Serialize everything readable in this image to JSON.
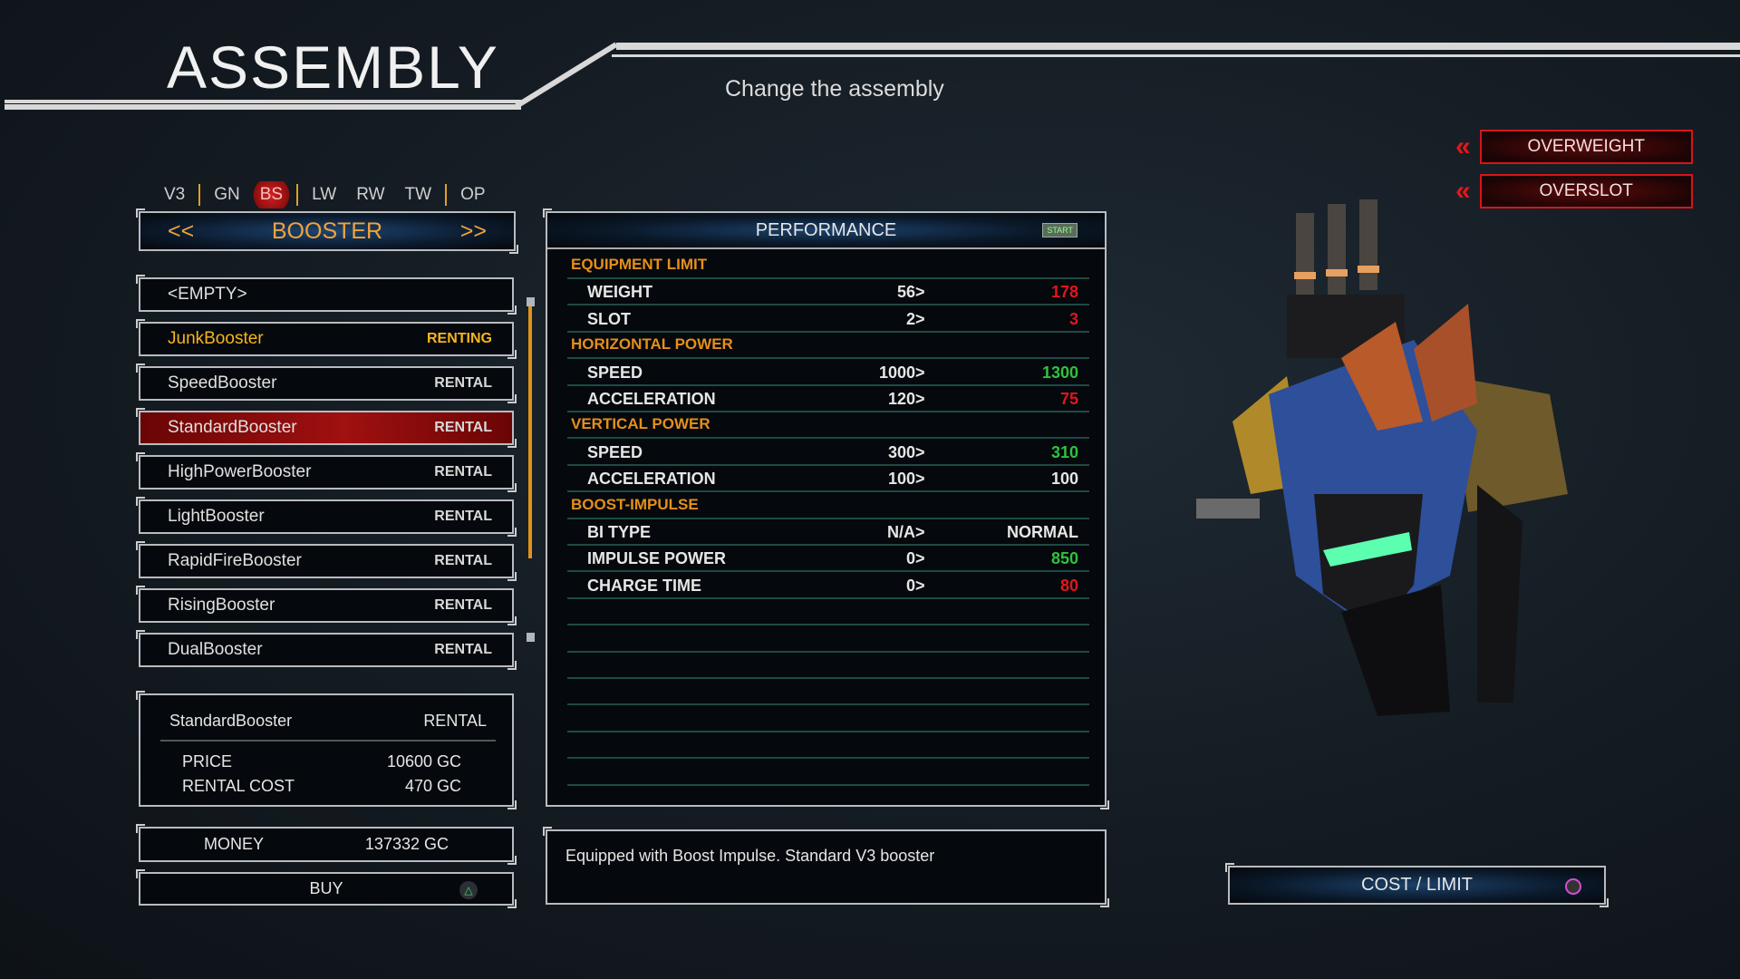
{
  "header": {
    "title": "ASSEMBLY",
    "subtitle": "Change the assembly"
  },
  "tabs": [
    {
      "label": "V3"
    },
    {
      "label": "GN"
    },
    {
      "label": "BS",
      "active": true
    },
    {
      "label": "LW"
    },
    {
      "label": "RW"
    },
    {
      "label": "TW"
    },
    {
      "label": "OP"
    }
  ],
  "category": {
    "prev": "<<",
    "label": "BOOSTER",
    "next": ">>"
  },
  "parts": [
    {
      "name": "<EMPTY>",
      "status": ""
    },
    {
      "name": "JunkBooster",
      "status": "RENTING"
    },
    {
      "name": "SpeedBooster",
      "status": "RENTAL"
    },
    {
      "name": "StandardBooster",
      "status": "RENTAL",
      "selected": true
    },
    {
      "name": "HighPowerBooster",
      "status": "RENTAL"
    },
    {
      "name": "LightBooster",
      "status": "RENTAL"
    },
    {
      "name": "RapidFireBooster",
      "status": "RENTAL"
    },
    {
      "name": "RisingBooster",
      "status": "RENTAL"
    },
    {
      "name": "DualBooster",
      "status": "RENTAL"
    }
  ],
  "info": {
    "name": "StandardBooster",
    "status": "RENTAL",
    "price_label": "PRICE",
    "price": "10600 GC",
    "rental_label": "RENTAL COST",
    "rental": "470 GC"
  },
  "money": {
    "label": "MONEY",
    "value": "137332 GC"
  },
  "buy": {
    "label": "BUY",
    "button_icon": "triangle-icon"
  },
  "performance": {
    "title": "PERFORMANCE",
    "start_badge": "START",
    "rows": [
      {
        "section": "EQUIPMENT LIMIT"
      },
      {
        "label": "WEIGHT",
        "old": "56",
        "new": "178",
        "trend": "worse"
      },
      {
        "label": "SLOT",
        "old": "2",
        "new": "3",
        "trend": "worse"
      },
      {
        "section": "HORIZONTAL POWER"
      },
      {
        "label": "SPEED",
        "old": "1000",
        "new": "1300",
        "trend": "better"
      },
      {
        "label": "ACCELERATION",
        "old": "120",
        "new": "75",
        "trend": "worse"
      },
      {
        "section": "VERTICAL POWER"
      },
      {
        "label": "SPEED",
        "old": "300",
        "new": "310",
        "trend": "better"
      },
      {
        "label": "ACCELERATION",
        "old": "100",
        "new": "100",
        "trend": "same"
      },
      {
        "section": "BOOST-IMPULSE"
      },
      {
        "label": "BI TYPE",
        "old": "N/A",
        "new": "NORMAL",
        "trend": "same"
      },
      {
        "label": "IMPULSE POWER",
        "old": "0",
        "new": "850",
        "trend": "better"
      },
      {
        "label": "CHARGE TIME",
        "old": "0",
        "new": "80",
        "trend": "worse"
      }
    ],
    "arrow": ">"
  },
  "description": "Equipped with Boost Impulse. Standard V3 booster",
  "warnings": [
    {
      "label": "OVERWEIGHT"
    },
    {
      "label": "OVERSLOT"
    }
  ],
  "cost_limit": {
    "label": "COST / LIMIT",
    "button_icon": "square-icon"
  },
  "colors": {
    "better": "#2fc23f",
    "worse": "#e0161c",
    "same": "#e6e6e6",
    "section": "#e58f1a",
    "accent": "#f2a23a"
  }
}
